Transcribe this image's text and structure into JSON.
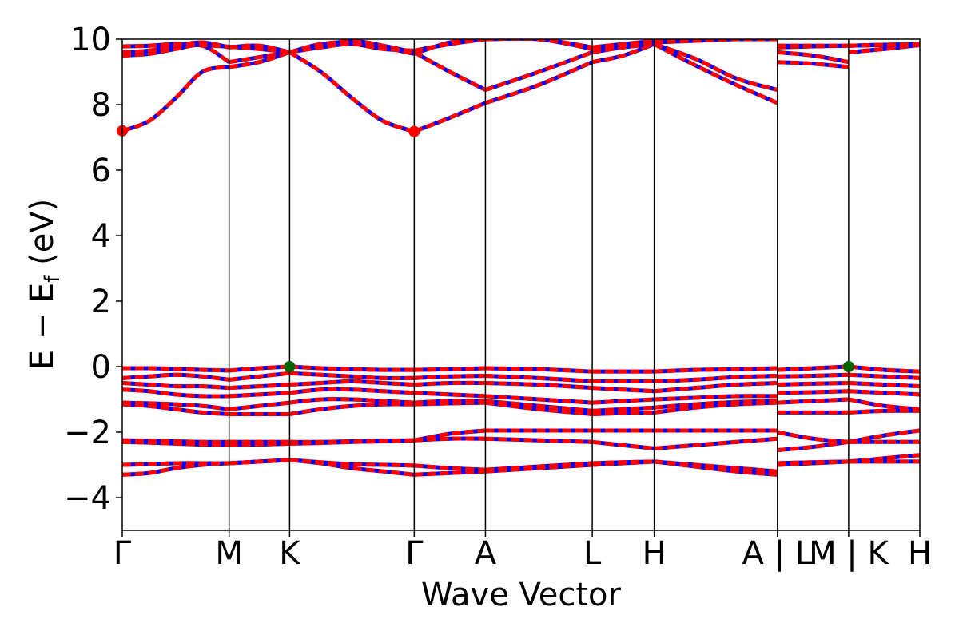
{
  "chart_data": {
    "type": "line",
    "title": "",
    "xlabel": "Wave Vector",
    "ylabel_main": "E − E",
    "ylabel_sub": "f",
    "ylabel_unit": " (eV)",
    "ylim": [
      -5,
      10
    ],
    "yticks": [
      -4,
      -2,
      0,
      2,
      4,
      6,
      8,
      10
    ],
    "ytick_labels": [
      "−4",
      "−2",
      "0",
      "2",
      "4",
      "6",
      "8",
      "10"
    ],
    "xlim": [
      0,
      11.2
    ],
    "kpoint_positions": [
      0,
      1.5,
      2.35,
      4.1,
      5.1,
      6.6,
      7.47,
      9.2,
      10.2,
      11.2
    ],
    "kpoint_labels": [
      "Γ",
      "M",
      "K",
      "Γ",
      "A",
      "L",
      "H",
      "A | L",
      "M | K",
      "H"
    ],
    "grid": false,
    "legend": "none",
    "series_colors": {
      "spin_up": "#ff0000",
      "spin_down": "#0000ff"
    },
    "cbm": {
      "color": "#ff0000",
      "points": [
        {
          "x": 0,
          "y": 7.2
        },
        {
          "x": 4.1,
          "y": 7.18
        }
      ]
    },
    "vbm": {
      "color": "#006400",
      "points": [
        {
          "x": 2.35,
          "y": 0.0
        },
        {
          "x": 10.2,
          "y": 0.0
        }
      ]
    },
    "segments": [
      {
        "x0": 0,
        "x1": 1.5,
        "bands": [
          [
            7.2,
            7.5,
            8.2,
            9.0,
            9.15
          ],
          [
            9.5,
            9.55,
            9.7,
            9.8,
            9.3
          ],
          [
            9.6,
            9.65,
            9.8,
            9.9,
            9.75
          ],
          [
            9.78,
            9.8,
            9.85,
            9.82,
            9.77
          ],
          [
            -0.05,
            -0.05,
            -0.07,
            -0.1,
            -0.12
          ],
          [
            -0.35,
            -0.3,
            -0.25,
            -0.3,
            -0.4
          ],
          [
            -0.5,
            -0.55,
            -0.6,
            -0.6,
            -0.65
          ],
          [
            -0.7,
            -0.75,
            -0.85,
            -0.9,
            -0.9
          ],
          [
            -1.1,
            -1.12,
            -1.15,
            -1.2,
            -1.3
          ],
          [
            -1.15,
            -1.2,
            -1.3,
            -1.4,
            -1.45
          ],
          [
            -2.25,
            -2.26,
            -2.28,
            -2.3,
            -2.3
          ],
          [
            -2.3,
            -2.32,
            -2.35,
            -2.38,
            -2.4
          ],
          [
            -3.0,
            -2.98,
            -2.95,
            -2.95,
            -2.95
          ],
          [
            -3.3,
            -3.25,
            -3.1,
            -3.0,
            -2.95
          ]
        ]
      },
      {
        "x0": 1.5,
        "x1": 2.35,
        "bands": [
          [
            9.15,
            9.3,
            9.6
          ],
          [
            9.3,
            9.45,
            9.6
          ],
          [
            9.75,
            9.8,
            9.6
          ],
          [
            9.77,
            9.7,
            9.6
          ],
          [
            -0.12,
            -0.05,
            0.0
          ],
          [
            -0.4,
            -0.3,
            -0.2
          ],
          [
            -0.65,
            -0.6,
            -0.55
          ],
          [
            -0.9,
            -0.85,
            -0.8
          ],
          [
            -1.3,
            -1.2,
            -1.1
          ],
          [
            -1.45,
            -1.45,
            -1.45
          ],
          [
            -2.3,
            -2.3,
            -2.3
          ],
          [
            -2.4,
            -2.38,
            -2.35
          ],
          [
            -2.95,
            -2.9,
            -2.85
          ],
          [
            -2.95,
            -2.9,
            -2.85
          ]
        ]
      },
      {
        "x0": 2.35,
        "x1": 4.1,
        "bands": [
          [
            9.6,
            9.0,
            8.2,
            7.5,
            7.18
          ],
          [
            9.6,
            9.8,
            9.95,
            9.8,
            9.6
          ],
          [
            9.6,
            9.85,
            9.9,
            9.75,
            9.55
          ],
          [
            9.6,
            9.75,
            9.85,
            9.7,
            9.65
          ],
          [
            0.0,
            -0.05,
            -0.08,
            -0.1,
            -0.1
          ],
          [
            -0.2,
            -0.25,
            -0.3,
            -0.35,
            -0.35
          ],
          [
            -0.55,
            -0.5,
            -0.45,
            -0.5,
            -0.55
          ],
          [
            -0.8,
            -0.7,
            -0.7,
            -0.75,
            -0.8
          ],
          [
            -1.1,
            -1.0,
            -1.0,
            -1.05,
            -1.1
          ],
          [
            -1.45,
            -1.3,
            -1.2,
            -1.15,
            -1.15
          ],
          [
            -2.3,
            -2.3,
            -2.28,
            -2.26,
            -2.25
          ],
          [
            -2.35,
            -2.33,
            -2.3,
            -2.28,
            -2.25
          ],
          [
            -2.85,
            -2.95,
            -3.1,
            -3.2,
            -3.3
          ],
          [
            -2.85,
            -2.92,
            -2.98,
            -3.0,
            -3.02
          ]
        ]
      },
      {
        "x0": 4.1,
        "x1": 5.1,
        "bands": [
          [
            7.18,
            7.6,
            8.05
          ],
          [
            9.6,
            9.0,
            8.45
          ],
          [
            9.55,
            9.9,
            10.0
          ],
          [
            9.65,
            9.85,
            10.0
          ],
          [
            -0.1,
            -0.08,
            -0.05
          ],
          [
            -0.35,
            -0.3,
            -0.28
          ],
          [
            -0.55,
            -0.5,
            -0.5
          ],
          [
            -0.8,
            -0.85,
            -0.9
          ],
          [
            -1.1,
            -1.05,
            -1.05
          ],
          [
            -1.15,
            -1.12,
            -1.1
          ],
          [
            -2.25,
            -2.05,
            -1.95
          ],
          [
            -2.25,
            -2.2,
            -2.2
          ],
          [
            -3.3,
            -3.25,
            -3.2
          ],
          [
            -3.02,
            -3.1,
            -3.15
          ]
        ]
      },
      {
        "x0": 5.1,
        "x1": 6.6,
        "bands": [
          [
            8.05,
            8.6,
            9.3
          ],
          [
            8.45,
            9.0,
            9.6
          ],
          [
            10.0,
            10.0,
            9.7
          ],
          [
            10.0,
            10.0,
            9.75
          ],
          [
            -0.05,
            -0.08,
            -0.15
          ],
          [
            -0.28,
            -0.35,
            -0.45
          ],
          [
            -0.5,
            -0.55,
            -0.65
          ],
          [
            -0.9,
            -1.0,
            -1.1
          ],
          [
            -1.05,
            -1.2,
            -1.35
          ],
          [
            -1.1,
            -1.3,
            -1.45
          ],
          [
            -1.95,
            -1.95,
            -1.95
          ],
          [
            -2.2,
            -2.25,
            -2.3
          ],
          [
            -3.2,
            -3.1,
            -3.0
          ],
          [
            -3.15,
            -3.05,
            -2.95
          ]
        ]
      },
      {
        "x0": 6.6,
        "x1": 7.47,
        "bands": [
          [
            9.3,
            9.5,
            9.85
          ],
          [
            9.6,
            9.75,
            9.85
          ],
          [
            9.7,
            9.8,
            9.9
          ],
          [
            9.75,
            9.85,
            9.95
          ],
          [
            -0.15,
            -0.15,
            -0.15
          ],
          [
            -0.45,
            -0.45,
            -0.45
          ],
          [
            -0.65,
            -0.7,
            -0.75
          ],
          [
            -1.1,
            -1.05,
            -1.0
          ],
          [
            -1.35,
            -1.3,
            -1.25
          ],
          [
            -1.45,
            -1.42,
            -1.4
          ],
          [
            -1.95,
            -1.95,
            -1.95
          ],
          [
            -2.3,
            -2.4,
            -2.5
          ],
          [
            -3.0,
            -2.95,
            -2.9
          ],
          [
            -2.95,
            -2.92,
            -2.9
          ]
        ]
      },
      {
        "x0": 7.47,
        "x1": 9.2,
        "bands": [
          [
            9.85,
            9.2,
            8.6,
            8.05
          ],
          [
            9.85,
            9.4,
            8.8,
            8.45
          ],
          [
            9.9,
            9.95,
            10.0,
            10.0
          ],
          [
            9.95,
            10.0,
            10.0,
            10.0
          ],
          [
            -0.15,
            -0.1,
            -0.08,
            -0.05
          ],
          [
            -0.45,
            -0.4,
            -0.32,
            -0.28
          ],
          [
            -0.75,
            -0.65,
            -0.55,
            -0.5
          ],
          [
            -1.0,
            -0.95,
            -0.9,
            -0.9
          ],
          [
            -1.25,
            -1.15,
            -1.08,
            -1.05
          ],
          [
            -1.4,
            -1.25,
            -1.15,
            -1.1
          ],
          [
            -1.95,
            -1.95,
            -1.95,
            -1.95
          ],
          [
            -2.5,
            -2.4,
            -2.3,
            -2.2
          ],
          [
            -2.9,
            -3.0,
            -3.1,
            -3.2
          ],
          [
            -2.9,
            -3.05,
            -3.2,
            -3.3
          ]
        ]
      },
      {
        "x0": 9.2,
        "x1": 10.2,
        "bands": [
          [
            9.3,
            9.25,
            9.15
          ],
          [
            9.6,
            9.5,
            9.3
          ],
          [
            9.75,
            9.78,
            9.8
          ],
          [
            9.8,
            9.8,
            9.8
          ],
          [
            -0.1,
            -0.05,
            0.0
          ],
          [
            -0.3,
            -0.28,
            -0.25
          ],
          [
            -0.55,
            -0.52,
            -0.5
          ],
          [
            -0.8,
            -0.78,
            -0.75
          ],
          [
            -1.1,
            -1.05,
            -1.0
          ],
          [
            -1.4,
            -1.4,
            -1.4
          ],
          [
            -2.0,
            -2.2,
            -2.3
          ],
          [
            -2.55,
            -2.45,
            -2.3
          ],
          [
            -2.95,
            -2.92,
            -2.9
          ],
          [
            -3.0,
            -2.95,
            -2.9
          ]
        ]
      },
      {
        "x0": 10.2,
        "x1": 11.2,
        "bands": [
          [
            9.6,
            9.7,
            9.82
          ],
          [
            9.6,
            9.7,
            9.83
          ],
          [
            9.8,
            9.82,
            9.84
          ],
          [
            9.8,
            9.83,
            9.85
          ],
          [
            0.0,
            -0.1,
            -0.15
          ],
          [
            -0.25,
            -0.3,
            -0.35
          ],
          [
            -0.5,
            -0.55,
            -0.6
          ],
          [
            -0.75,
            -0.8,
            -0.85
          ],
          [
            -1.0,
            -1.2,
            -1.3
          ],
          [
            -1.4,
            -1.35,
            -1.35
          ],
          [
            -2.3,
            -2.1,
            -1.95
          ],
          [
            -2.3,
            -2.3,
            -2.3
          ],
          [
            -2.9,
            -2.8,
            -2.7
          ],
          [
            -2.9,
            -2.9,
            -2.9
          ]
        ]
      }
    ]
  }
}
